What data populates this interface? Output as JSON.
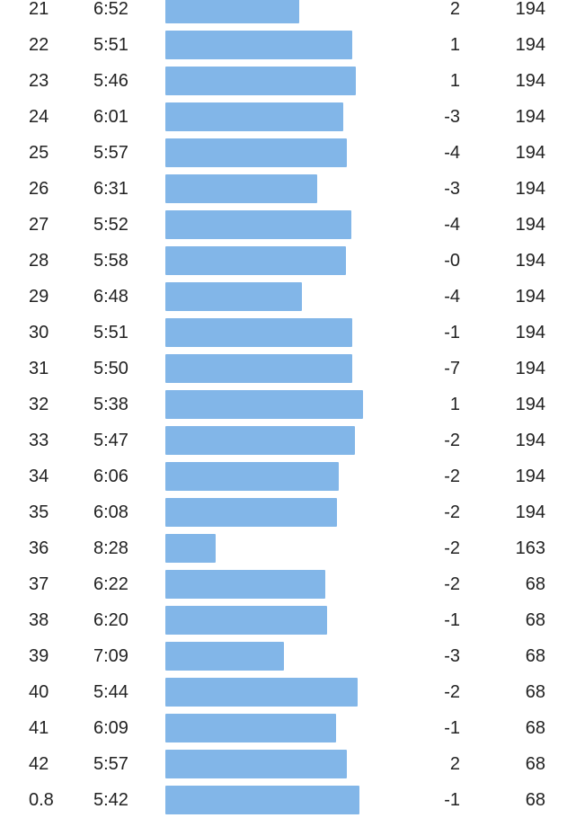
{
  "theme": {
    "bar_color": "#82b6e8",
    "text_color": "#222222"
  },
  "splits": [
    {
      "km": "21",
      "pace": "6:52",
      "elev_diff": "2",
      "hr": "194"
    },
    {
      "km": "22",
      "pace": "5:51",
      "elev_diff": "1",
      "hr": "194"
    },
    {
      "km": "23",
      "pace": "5:46",
      "elev_diff": "1",
      "hr": "194"
    },
    {
      "km": "24",
      "pace": "6:01",
      "elev_diff": "-3",
      "hr": "194"
    },
    {
      "km": "25",
      "pace": "5:57",
      "elev_diff": "-4",
      "hr": "194"
    },
    {
      "km": "26",
      "pace": "6:31",
      "elev_diff": "-3",
      "hr": "194"
    },
    {
      "km": "27",
      "pace": "5:52",
      "elev_diff": "-4",
      "hr": "194"
    },
    {
      "km": "28",
      "pace": "5:58",
      "elev_diff": "-0",
      "hr": "194"
    },
    {
      "km": "29",
      "pace": "6:48",
      "elev_diff": "-4",
      "hr": "194"
    },
    {
      "km": "30",
      "pace": "5:51",
      "elev_diff": "-1",
      "hr": "194"
    },
    {
      "km": "31",
      "pace": "5:50",
      "elev_diff": "-7",
      "hr": "194"
    },
    {
      "km": "32",
      "pace": "5:38",
      "elev_diff": "1",
      "hr": "194"
    },
    {
      "km": "33",
      "pace": "5:47",
      "elev_diff": "-2",
      "hr": "194"
    },
    {
      "km": "34",
      "pace": "6:06",
      "elev_diff": "-2",
      "hr": "194"
    },
    {
      "km": "35",
      "pace": "6:08",
      "elev_diff": "-2",
      "hr": "194"
    },
    {
      "km": "36",
      "pace": "8:28",
      "elev_diff": "-2",
      "hr": "163"
    },
    {
      "km": "37",
      "pace": "6:22",
      "elev_diff": "-2",
      "hr": "68"
    },
    {
      "km": "38",
      "pace": "6:20",
      "elev_diff": "-1",
      "hr": "68"
    },
    {
      "km": "39",
      "pace": "7:09",
      "elev_diff": "-3",
      "hr": "68"
    },
    {
      "km": "40",
      "pace": "5:44",
      "elev_diff": "-2",
      "hr": "68"
    },
    {
      "km": "41",
      "pace": "6:09",
      "elev_diff": "-1",
      "hr": "68"
    },
    {
      "km": "42",
      "pace": "5:57",
      "elev_diff": "2",
      "hr": "68"
    },
    {
      "km": "0.8",
      "pace": "5:42",
      "elev_diff": "-1",
      "hr": "68"
    }
  ]
}
